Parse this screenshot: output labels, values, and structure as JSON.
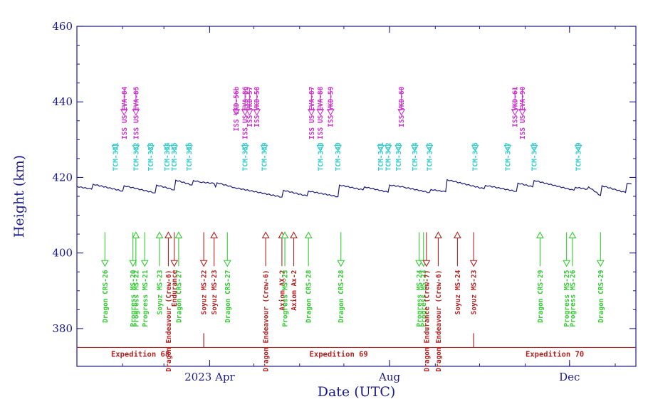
{
  "chart_data": {
    "type": "line",
    "title": "",
    "xlabel": "Date (UTC)",
    "ylabel": "Height (km)",
    "ylim": [
      370,
      460
    ],
    "yticks": [
      380,
      400,
      420,
      440,
      460
    ],
    "xlim": [
      "2023-01-01",
      "2024-01-15"
    ],
    "xticks": [
      {
        "date": "2023-04-01",
        "label": "2023 Apr"
      },
      {
        "date": "2023-08-01",
        "label": "Aug"
      },
      {
        "date": "2023-12-01",
        "label": "Dec"
      }
    ],
    "grid": false,
    "colors": {
      "axis": "#1a1a8c",
      "altitude": "#1a1a7a",
      "eva": "#cc33cc",
      "tcm": "#33cccc",
      "visiting_arrive": "#33cc33",
      "visiting_other": "#b22222",
      "expedition": "#b22222"
    },
    "series": [
      {
        "points": [
          [
            "2023-01-01",
            417.6
          ],
          [
            "2023-01-11",
            416.9
          ],
          [
            "2023-01-12",
            418.2
          ],
          [
            "2023-02-01",
            416.4
          ],
          [
            "2023-02-02",
            417.8
          ],
          [
            "2023-02-23",
            415.9
          ],
          [
            "2023-02-24",
            418.0
          ],
          [
            "2023-03-08",
            416.7
          ],
          [
            "2023-03-09",
            419.3
          ],
          [
            "2023-03-20",
            418.0
          ],
          [
            "2023-03-21",
            419.2
          ],
          [
            "2023-03-25",
            418.8
          ],
          [
            "2023-04-04",
            418.4
          ],
          [
            "2023-04-05",
            417.5
          ],
          [
            "2023-04-06",
            418.6
          ],
          [
            "2023-04-18",
            417.3
          ],
          [
            "2023-05-20",
            414.8
          ],
          [
            "2023-05-21",
            416.6
          ],
          [
            "2023-06-06",
            415.1
          ],
          [
            "2023-06-07",
            416.4
          ],
          [
            "2023-06-27",
            414.9
          ],
          [
            "2023-06-28",
            418.0
          ],
          [
            "2023-07-14",
            416.7
          ],
          [
            "2023-07-15",
            417.5
          ],
          [
            "2023-07-31",
            416.1
          ],
          [
            "2023-08-01",
            418.0
          ],
          [
            "2023-08-11",
            417.4
          ],
          [
            "2023-08-28",
            416.0
          ],
          [
            "2023-08-29",
            416.8
          ],
          [
            "2023-09-08",
            416.2
          ],
          [
            "2023-09-09",
            419.4
          ],
          [
            "2023-10-04",
            417.0
          ],
          [
            "2023-10-05",
            417.9
          ],
          [
            "2023-10-26",
            416.3
          ],
          [
            "2023-10-27",
            418.5
          ],
          [
            "2023-11-06",
            417.5
          ],
          [
            "2023-11-07",
            419.2
          ],
          [
            "2023-12-04",
            416.6
          ],
          [
            "2023-12-05",
            417.4
          ],
          [
            "2023-12-13",
            416.9
          ],
          [
            "2023-12-14",
            417.5
          ],
          [
            "2023-12-22",
            415.2
          ],
          [
            "2023-12-23",
            417.8
          ],
          [
            "2024-01-08",
            416.0
          ],
          [
            "2024-01-09",
            418.4
          ],
          [
            "2024-01-12",
            418.3
          ]
        ]
      }
    ],
    "eva_events": [
      {
        "date": "2023-02-02",
        "label": "ISS US EVA-84"
      },
      {
        "date": "2023-02-10",
        "label": "ISS US EVA-85"
      },
      {
        "date": "2023-04-19",
        "label": "ISS VKD-56b"
      },
      {
        "date": "2023-04-25",
        "label": "ISS US EVA-86"
      },
      {
        "date": "2023-04-28",
        "label": "ISS VKD-57"
      },
      {
        "date": "2023-05-03",
        "label": "ISS VKD-58"
      },
      {
        "date": "2023-06-09",
        "label": "ISS US EVA-87"
      },
      {
        "date": "2023-06-15",
        "label": "ISS US EVA-88"
      },
      {
        "date": "2023-06-22",
        "label": "ISS VKD-59"
      },
      {
        "date": "2023-08-09",
        "label": "ISS VKD-60"
      },
      {
        "date": "2023-10-25",
        "label": "ISS VKD-61"
      },
      {
        "date": "2023-10-30",
        "label": "ISS US EVA-90"
      }
    ],
    "tcm_events": [
      {
        "date": "2023-01-27",
        "label": "TCM-331"
      },
      {
        "date": "2023-02-10",
        "label": "TCM-332"
      },
      {
        "date": "2023-02-20",
        "label": "TCM-333"
      },
      {
        "date": "2023-03-03",
        "label": "TCM-334"
      },
      {
        "date": "2023-03-08",
        "label": "TCM-335"
      },
      {
        "date": "2023-03-18",
        "label": "TCM-336"
      },
      {
        "date": "2023-04-25",
        "label": "TCM-338"
      },
      {
        "date": "2023-05-08",
        "label": "TCM-339"
      },
      {
        "date": "2023-06-15",
        "label": "TCM-340"
      },
      {
        "date": "2023-06-27",
        "label": "TCM-340"
      },
      {
        "date": "2023-07-26",
        "label": "TCM-341"
      },
      {
        "date": "2023-07-31",
        "label": "TCM-342"
      },
      {
        "date": "2023-08-07",
        "label": "TCM-343"
      },
      {
        "date": "2023-08-18",
        "label": "TCM-344"
      },
      {
        "date": "2023-08-28",
        "label": "TCM-345"
      },
      {
        "date": "2023-09-28",
        "label": "TCM-346"
      },
      {
        "date": "2023-10-20",
        "label": "TCM-347"
      },
      {
        "date": "2023-11-07",
        "label": "TCM-348"
      },
      {
        "date": "2023-12-07",
        "label": "TCM-349"
      }
    ],
    "visiting_events": [
      {
        "date": "2023-01-20",
        "label": "Dragon CRS-26",
        "color": "green",
        "dir": "down"
      },
      {
        "date": "2023-02-08",
        "label": "Progress MS-20",
        "color": "green",
        "dir": "down"
      },
      {
        "date": "2023-02-10",
        "label": "Progress MS-22",
        "color": "green",
        "dir": "up"
      },
      {
        "date": "2023-02-16",
        "label": "Progress MS-21",
        "color": "green",
        "dir": "down"
      },
      {
        "date": "2023-02-26",
        "label": "Soyuz MS-23",
        "color": "green",
        "dir": "up"
      },
      {
        "date": "2023-03-04",
        "label": "Dragon Endeavour (Crew-6)",
        "color": "red",
        "dir": "up"
      },
      {
        "date": "2023-03-08",
        "label": "Endurance",
        "color": "red",
        "dir": "down"
      },
      {
        "date": "2023-03-11",
        "label": "Dragon CRS-27",
        "color": "green",
        "dir": "up"
      },
      {
        "date": "2023-03-28",
        "label": "Soyuz MS-22",
        "color": "red",
        "dir": "down"
      },
      {
        "date": "2023-04-04",
        "label": "Soyuz MS-23",
        "color": "red",
        "dir": "up"
      },
      {
        "date": "2023-04-13",
        "label": "Dragon CRS-27",
        "color": "green",
        "dir": "down"
      },
      {
        "date": "2023-05-09",
        "label": "Dragon Endeavour (Crew-6)",
        "color": "red",
        "dir": "up"
      },
      {
        "date": "2023-05-20",
        "label": "Axiom AX-2",
        "color": "red",
        "dir": "up"
      },
      {
        "date": "2023-05-22",
        "label": "Progress MS-23",
        "color": "green",
        "dir": "up"
      },
      {
        "date": "2023-05-28",
        "label": "Axiom Ax-2",
        "color": "red",
        "dir": "up"
      },
      {
        "date": "2023-06-07",
        "label": "Dragon CRS-28",
        "color": "green",
        "dir": "up"
      },
      {
        "date": "2023-06-29",
        "label": "Dragon CRS-28",
        "color": "green",
        "dir": "down"
      },
      {
        "date": "2023-08-21",
        "label": "Progress MS-24",
        "color": "green",
        "dir": "down"
      },
      {
        "date": "2023-08-24",
        "label": "Progress MS-23",
        "color": "green",
        "dir": "down"
      },
      {
        "date": "2023-08-26",
        "label": "Dragon Endurance (Crew-7)",
        "color": "red",
        "dir": "down"
      },
      {
        "date": "2023-09-03",
        "label": "Dragon Endeavour (Crew-6)",
        "color": "red",
        "dir": "up"
      },
      {
        "date": "2023-09-16",
        "label": "Soyuz MS-24",
        "color": "red",
        "dir": "up"
      },
      {
        "date": "2023-09-27",
        "label": "Soyuz MS-23",
        "color": "red",
        "dir": "down"
      },
      {
        "date": "2023-11-11",
        "label": "Dragon CRS-29",
        "color": "green",
        "dir": "up"
      },
      {
        "date": "2023-11-29",
        "label": "Progress MS-25",
        "color": "green",
        "dir": "down"
      },
      {
        "date": "2023-12-03",
        "label": "Progress MS-26",
        "color": "green",
        "dir": "up"
      },
      {
        "date": "2023-12-22",
        "label": "Dragon CRS-29",
        "color": "green",
        "dir": "down"
      }
    ],
    "expeditions": [
      {
        "start": "2023-01-01",
        "end": "2023-03-28",
        "label": "Expedition 68"
      },
      {
        "start": "2023-03-28",
        "end": "2023-09-27",
        "label": "Expedition 69"
      },
      {
        "start": "2023-09-27",
        "end": "2024-01-15",
        "label": "Expedition 70"
      }
    ]
  }
}
